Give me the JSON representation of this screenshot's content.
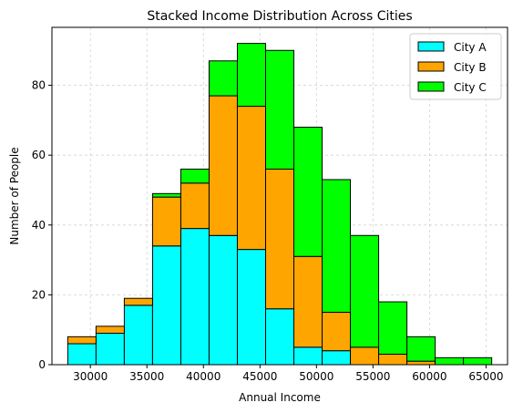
{
  "chart_data": {
    "type": "bar",
    "stacked": true,
    "histogram": true,
    "title": "Stacked Income Distribution Across Cities",
    "xlabel": "Annual Income",
    "ylabel": "Number of People",
    "xlim": [
      26600,
      66900
    ],
    "ylim": [
      0,
      96.6
    ],
    "xticks": [
      30000,
      35000,
      40000,
      45000,
      50000,
      55000,
      60000,
      65000
    ],
    "yticks": [
      0,
      20,
      40,
      60,
      80
    ],
    "grid": true,
    "legend_position": "top-right",
    "bin_edges": [
      28000,
      30500,
      33000,
      35500,
      38000,
      40500,
      43000,
      45500,
      48000,
      50500,
      53000,
      55500,
      58000,
      60500,
      63000,
      65500
    ],
    "series": [
      {
        "name": "City A",
        "color": "#00ffff",
        "values": [
          6,
          9,
          17,
          34,
          39,
          37,
          33,
          16,
          5,
          4,
          0,
          0,
          0,
          0,
          0
        ]
      },
      {
        "name": "City B",
        "color": "#ffa500",
        "values": [
          2,
          2,
          2,
          14,
          13,
          40,
          41,
          40,
          26,
          11,
          5,
          3,
          1,
          0,
          0
        ]
      },
      {
        "name": "City C",
        "color": "#00ff00",
        "values": [
          0,
          0,
          0,
          1,
          4,
          10,
          18,
          34,
          37,
          38,
          32,
          15,
          7,
          2,
          2
        ]
      }
    ]
  }
}
